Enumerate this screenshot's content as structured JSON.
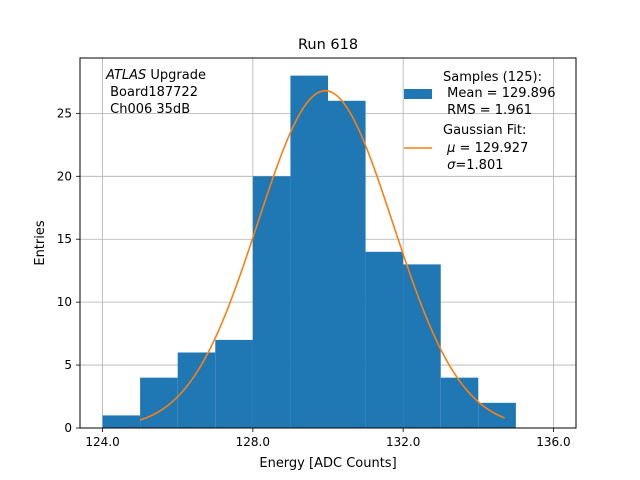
{
  "chart_data": {
    "type": "histogram",
    "title": "Run 618",
    "xlabel": "Energy [ADC Counts]",
    "ylabel": "Entries",
    "xlim": [
      123.4,
      136.6
    ],
    "ylim": [
      0,
      29.4
    ],
    "x_ticks": [
      124,
      128,
      132,
      136
    ],
    "x_tick_labels": [
      "124.0",
      "128.0",
      "132.0",
      "136.0"
    ],
    "y_ticks": [
      0,
      5,
      10,
      15,
      20,
      25
    ],
    "y_tick_labels": [
      "0",
      "5",
      "10",
      "15",
      "20",
      "25"
    ],
    "grid": true,
    "bin_edges": [
      124,
      125,
      126,
      127,
      128,
      129,
      130,
      131,
      132,
      133,
      134,
      135
    ],
    "counts": [
      1,
      4,
      6,
      7,
      20,
      28,
      26,
      14,
      13,
      4,
      2
    ],
    "bar_color": "#1f77b4",
    "fit": {
      "type": "gaussian",
      "mu": 129.927,
      "sigma": 1.801,
      "amplitude": 26.8,
      "x_range": [
        125,
        134.7
      ],
      "color": "#ff7f0e"
    },
    "annotation": {
      "italic": "ATLAS",
      "rest": " Upgrade",
      "line2": " Board187722",
      "line3": " Ch006 35dB"
    },
    "legend": {
      "position": "top-right",
      "samples_title": "Samples (125):",
      "samples_mean": " Mean = 129.896",
      "samples_rms": " RMS = 1.961",
      "fit_title": "Gaussian Fit:",
      "fit_mu_symbol": "μ",
      "fit_mu_text": " = 129.927",
      "fit_sigma_symbol": "σ",
      "fit_sigma_text": "=1.801"
    }
  }
}
